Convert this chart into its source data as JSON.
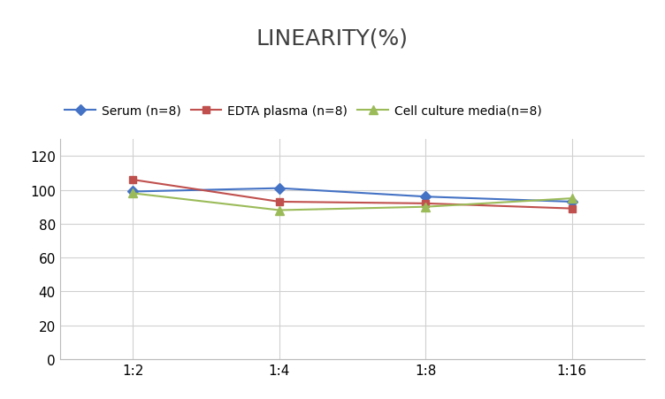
{
  "title": "LINEARITY(%)",
  "x_labels": [
    "1:2",
    "1:4",
    "1:8",
    "1:16"
  ],
  "series": [
    {
      "name": "Serum (n=8)",
      "values": [
        99,
        101,
        96,
        93
      ],
      "color": "#4472C4",
      "marker": "D",
      "markersize": 6
    },
    {
      "name": "EDTA plasma (n=8)",
      "values": [
        106,
        93,
        92,
        89
      ],
      "color": "#C0504D",
      "marker": "s",
      "markersize": 6
    },
    {
      "name": "Cell culture media(n=8)",
      "values": [
        98,
        88,
        90,
        95
      ],
      "color": "#9BBB59",
      "marker": "^",
      "markersize": 7
    }
  ],
  "ylim": [
    0,
    130
  ],
  "yticks": [
    0,
    20,
    40,
    60,
    80,
    100,
    120
  ],
  "title_fontsize": 18,
  "legend_fontsize": 10,
  "tick_fontsize": 11,
  "background_color": "#ffffff",
  "grid_color": "#d0d0d0"
}
